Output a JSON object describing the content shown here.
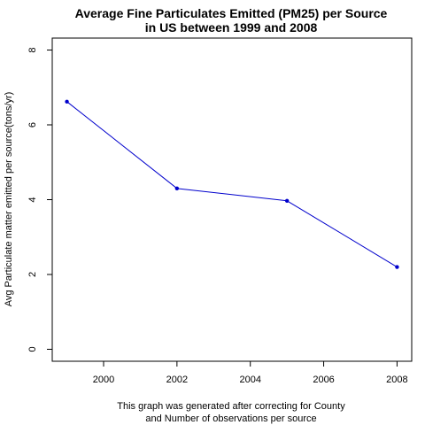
{
  "chart_data": {
    "type": "line",
    "title_lines": [
      "Average Fine Particulates Emitted (PM25) per Source",
      "in US between 1999 and 2008"
    ],
    "xlabel_lines": [
      "This graph was generated after correcting for County",
      "and Number of observations per source"
    ],
    "ylabel": "Avg Particulate matter emitted per source(tons/yr)",
    "x": [
      1999,
      2002,
      2005,
      2008
    ],
    "y": [
      6.62,
      4.3,
      3.97,
      2.2
    ],
    "xlim": [
      1998.6,
      2008.4
    ],
    "ylim": [
      -0.32,
      8.32
    ],
    "xticks": [
      2000,
      2002,
      2004,
      2006,
      2008
    ],
    "yticks": [
      0,
      2,
      4,
      6,
      8
    ],
    "series": [
      {
        "values": [
          6.62,
          4.3,
          3.97,
          2.2
        ],
        "color": "#0000cc"
      }
    ],
    "line_color": "#0000cc",
    "grid": false,
    "legend": "none"
  }
}
